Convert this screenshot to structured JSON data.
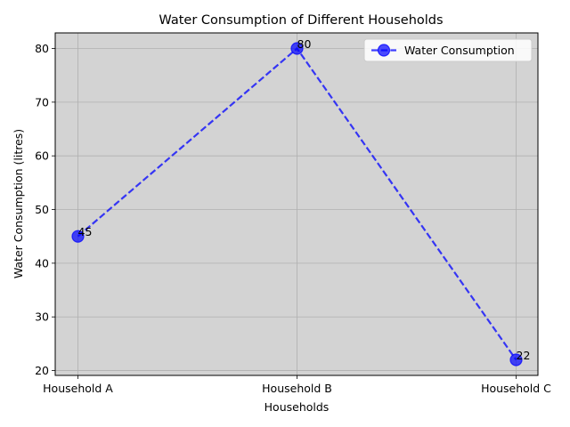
{
  "chart_data": {
    "type": "line",
    "title": "Water Consumption of Different Households",
    "xlabel": "Households",
    "ylabel": "Water Consumption (litres)",
    "categories": [
      "Household A",
      "Household B",
      "Household C"
    ],
    "series": [
      {
        "name": "Water Consumption",
        "values": [
          45,
          80,
          22
        ],
        "color": "#0000ff"
      }
    ],
    "ylim": [
      19.1,
      82.9
    ],
    "yticks": [
      20,
      30,
      40,
      50,
      60,
      70,
      80
    ],
    "grid": true,
    "legend": "upper right",
    "line_style": "dashed",
    "marker": "circle",
    "data_labels": [
      "45",
      "80",
      "22"
    ],
    "plot_background": "#d3d3d3"
  }
}
